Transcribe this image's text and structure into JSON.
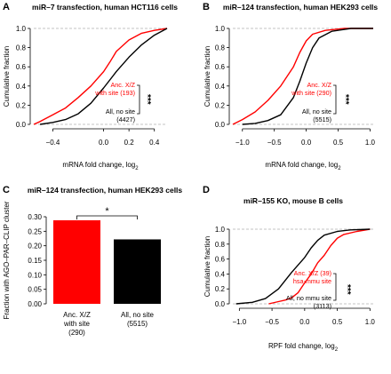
{
  "colors": {
    "site": "#ff0000",
    "nosite": "#000000",
    "grid": "#b0b0b0"
  },
  "stars": "***",
  "log2": "2",
  "chart_data": [
    {
      "panel": "A",
      "type": "line",
      "title": "miR–7 transfection, human HCT116 cells",
      "xlabel": "mRNA fold change, log",
      "ylabel": "Cumulative fraction",
      "xlim": [
        -0.55,
        0.5
      ],
      "ylim": [
        0,
        1.0
      ],
      "xticks": [
        {
          "v": -0.4,
          "t": "−0.4"
        },
        {
          "v": 0.0,
          "t": "0.0"
        },
        {
          "v": 0.2,
          "t": "0.2"
        },
        {
          "v": 0.4,
          "t": "0.4"
        }
      ],
      "yticks": [
        {
          "v": 0.0,
          "t": "0.0"
        },
        {
          "v": 0.2,
          "t": "0.2"
        },
        {
          "v": 0.4,
          "t": "0.4"
        },
        {
          "v": 0.6,
          "t": "0.6"
        },
        {
          "v": 0.8,
          "t": "0.8"
        },
        {
          "v": 1.0,
          "t": "1.0"
        }
      ],
      "grid_y": [
        0,
        1
      ],
      "legend": {
        "site": [
          "Anc. X/Z",
          "with site (193)"
        ],
        "nosite": [
          "All, no site",
          "(4427)"
        ],
        "significance": "***"
      },
      "series": [
        {
          "key": "site",
          "label": "with site (193)",
          "points": [
            [
              -0.55,
              0.0
            ],
            [
              -0.5,
              0.03
            ],
            [
              -0.4,
              0.1
            ],
            [
              -0.3,
              0.17
            ],
            [
              -0.2,
              0.28
            ],
            [
              -0.1,
              0.4
            ],
            [
              0.0,
              0.55
            ],
            [
              0.05,
              0.65
            ],
            [
              0.1,
              0.76
            ],
            [
              0.2,
              0.88
            ],
            [
              0.3,
              0.95
            ],
            [
              0.4,
              0.98
            ],
            [
              0.5,
              1.0
            ]
          ]
        },
        {
          "key": "nosite",
          "label": "All, no site (4427)",
          "points": [
            [
              -0.5,
              0.0
            ],
            [
              -0.4,
              0.02
            ],
            [
              -0.3,
              0.05
            ],
            [
              -0.2,
              0.11
            ],
            [
              -0.1,
              0.22
            ],
            [
              0.0,
              0.38
            ],
            [
              0.1,
              0.55
            ],
            [
              0.2,
              0.7
            ],
            [
              0.3,
              0.83
            ],
            [
              0.4,
              0.93
            ],
            [
              0.5,
              1.0
            ]
          ]
        }
      ]
    },
    {
      "panel": "B",
      "type": "line",
      "title": "miR–124 transfection, human HEK293 cells",
      "xlabel": "mRNA fold change, log",
      "ylabel": "Cumulative fraction",
      "xlim": [
        -1.15,
        1.05
      ],
      "ylim": [
        0,
        1.0
      ],
      "xticks": [
        {
          "v": -1.0,
          "t": "−1.0"
        },
        {
          "v": -0.5,
          "t": "−0.5"
        },
        {
          "v": 0.0,
          "t": "0.0"
        },
        {
          "v": 0.5,
          "t": "0.5"
        },
        {
          "v": 1.0,
          "t": "1.0"
        }
      ],
      "yticks": [
        {
          "v": 0.0,
          "t": "0.0"
        },
        {
          "v": 0.2,
          "t": "0.2"
        },
        {
          "v": 0.4,
          "t": "0.4"
        },
        {
          "v": 0.6,
          "t": "0.6"
        },
        {
          "v": 0.8,
          "t": "0.8"
        },
        {
          "v": 1.0,
          "t": "1.0"
        }
      ],
      "grid_y": [
        0,
        1
      ],
      "legend": {
        "site": [
          "Anc. X/Z",
          "with site (290)"
        ],
        "nosite": [
          "All, no site",
          "(5515)"
        ],
        "significance": "***"
      },
      "series": [
        {
          "key": "site",
          "label": "with site (290)",
          "points": [
            [
              -1.15,
              0.0
            ],
            [
              -1.0,
              0.05
            ],
            [
              -0.8,
              0.13
            ],
            [
              -0.6,
              0.25
            ],
            [
              -0.4,
              0.4
            ],
            [
              -0.2,
              0.6
            ],
            [
              -0.1,
              0.75
            ],
            [
              0.0,
              0.87
            ],
            [
              0.1,
              0.94
            ],
            [
              0.3,
              0.98
            ],
            [
              0.6,
              1.0
            ],
            [
              1.05,
              1.0
            ]
          ]
        },
        {
          "key": "nosite",
          "label": "All, no site (5515)",
          "points": [
            [
              -1.0,
              0.0
            ],
            [
              -0.8,
              0.01
            ],
            [
              -0.6,
              0.04
            ],
            [
              -0.4,
              0.1
            ],
            [
              -0.2,
              0.28
            ],
            [
              -0.1,
              0.45
            ],
            [
              0.0,
              0.64
            ],
            [
              0.1,
              0.8
            ],
            [
              0.2,
              0.9
            ],
            [
              0.4,
              0.97
            ],
            [
              0.7,
              1.0
            ],
            [
              1.05,
              1.0
            ]
          ]
        }
      ]
    },
    {
      "panel": "C",
      "type": "bar",
      "title": "miR–124 transfection, human HEK293 cells",
      "ylabel": "Fraction with AGO–PAR–CLIP cluster",
      "ylim": [
        0,
        0.3
      ],
      "yticks": [
        {
          "v": 0.0,
          "t": "0.00"
        },
        {
          "v": 0.05,
          "t": "0.05"
        },
        {
          "v": 0.1,
          "t": "0.10"
        },
        {
          "v": 0.15,
          "t": "0.15"
        },
        {
          "v": 0.2,
          "t": "0.20"
        },
        {
          "v": 0.25,
          "t": "0.25"
        },
        {
          "v": 0.3,
          "t": "0.30"
        }
      ],
      "categories": [
        [
          "Anc. X/Z",
          "with site",
          "(290)"
        ],
        [
          "All, no site",
          "(5515)"
        ]
      ],
      "values": [
        0.288,
        0.222
      ],
      "bar_keys": [
        "site",
        "nosite"
      ],
      "significance": "*"
    },
    {
      "panel": "D",
      "type": "line",
      "title": "miR–155 KO, mouse B cells",
      "xlabel": "RPF fold change, log",
      "ylabel": "Cumulative fraction",
      "xlim": [
        -1.1,
        1.05
      ],
      "ylim": [
        0,
        1.0
      ],
      "xticks": [
        {
          "v": -1.0,
          "t": "−1.0"
        },
        {
          "v": -0.5,
          "t": "−0.5"
        },
        {
          "v": 0.0,
          "t": "0.0"
        },
        {
          "v": 0.5,
          "t": "0.5"
        },
        {
          "v": 1.0,
          "t": "1.0"
        }
      ],
      "yticks": [
        {
          "v": 0.0,
          "t": "0.0"
        },
        {
          "v": 0.2,
          "t": "0.2"
        },
        {
          "v": 0.4,
          "t": "0.4"
        },
        {
          "v": 0.6,
          "t": "0.6"
        },
        {
          "v": 0.8,
          "t": "0.8"
        },
        {
          "v": 1.0,
          "t": "1.0"
        }
      ],
      "grid_y": [
        0,
        1
      ],
      "legend": {
        "site": [
          "Anc. X/Z (39)",
          "hsa-mmu site"
        ],
        "nosite": [
          "All, no mmu site",
          "(3113)"
        ],
        "significance": "***"
      },
      "series": [
        {
          "key": "site",
          "label": "Anc. X/Z (39) hsa-mmu site",
          "points": [
            [
              -0.55,
              0.0
            ],
            [
              -0.4,
              0.03
            ],
            [
              -0.3,
              0.05
            ],
            [
              -0.2,
              0.08
            ],
            [
              -0.1,
              0.15
            ],
            [
              0.0,
              0.28
            ],
            [
              0.1,
              0.4
            ],
            [
              0.2,
              0.55
            ],
            [
              0.3,
              0.65
            ],
            [
              0.4,
              0.78
            ],
            [
              0.5,
              0.88
            ],
            [
              0.6,
              0.93
            ],
            [
              0.8,
              0.97
            ],
            [
              1.0,
              1.0
            ]
          ]
        },
        {
          "key": "nosite",
          "label": "All, no mmu site (3113)",
          "points": [
            [
              -1.05,
              0.0
            ],
            [
              -0.8,
              0.02
            ],
            [
              -0.6,
              0.07
            ],
            [
              -0.4,
              0.2
            ],
            [
              -0.2,
              0.42
            ],
            [
              0.0,
              0.62
            ],
            [
              0.1,
              0.75
            ],
            [
              0.2,
              0.85
            ],
            [
              0.3,
              0.92
            ],
            [
              0.5,
              0.97
            ],
            [
              0.7,
              0.99
            ],
            [
              1.0,
              1.0
            ]
          ]
        }
      ]
    }
  ]
}
